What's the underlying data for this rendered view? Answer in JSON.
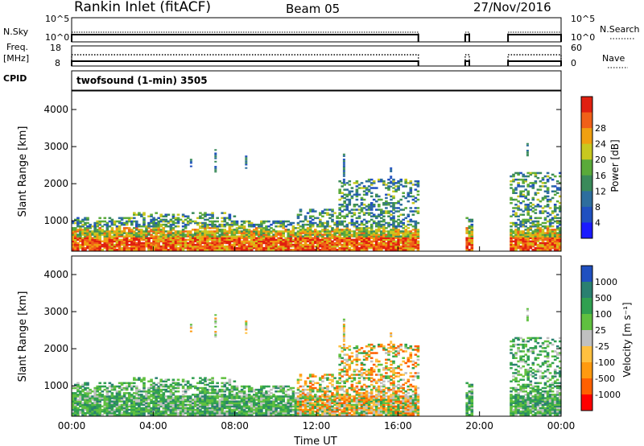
{
  "header": {
    "station": "Rankin Inlet (fitACF)",
    "beam": "Beam 05",
    "date": "27/Nov/2016"
  },
  "noise_panel": {
    "left_label": "N.Sky",
    "left_ticks": [
      "10^5",
      "10^0"
    ],
    "right_label": "N.Search",
    "right_ticks": [
      "10^5",
      "10^0"
    ]
  },
  "freq_panel": {
    "left_label_1": "Freq.",
    "left_label_2": "[MHz]",
    "left_ticks": [
      "18",
      "8"
    ],
    "right_label": "Nave",
    "right_ticks": [
      "60",
      "0"
    ]
  },
  "cpid": {
    "label": "CPID",
    "value": "twofsound (1-min) 3505"
  },
  "colors": {
    "power_scale": [
      "#1a1aff",
      "#2050c0",
      "#2e6e9e",
      "#3a8a5a",
      "#5aaa3a",
      "#c8c820",
      "#f0a010",
      "#f06018",
      "#e02010"
    ],
    "velocity_scale": [
      "#ff0000",
      "#ff6000",
      "#ff9a10",
      "#ffc040",
      "#c0c0c0",
      "#60c040",
      "#30a050",
      "#2a8070",
      "#2050c0"
    ]
  },
  "power_colorbar": {
    "label": "Power [dB]",
    "ticks": [
      "4",
      "8",
      "12",
      "16",
      "20",
      "24",
      "28"
    ]
  },
  "velocity_colorbar": {
    "label": "Velocity [m s⁻¹]",
    "ticks": [
      "1000",
      "500",
      "100",
      "25",
      "-25",
      "-100",
      "-500",
      "-1000"
    ]
  },
  "chart_data": {
    "type": "heatmap",
    "xlabel": "Time UT",
    "x_ticks": [
      "00:00",
      "04:00",
      "08:00",
      "12:00",
      "16:00",
      "20:00",
      "00:00"
    ],
    "xlim_hours": [
      0,
      24
    ],
    "ylabel": "Slant Range [km]",
    "y_ticks": [
      1000,
      2000,
      3000,
      4000
    ],
    "ylim": [
      180,
      4500
    ],
    "data_gap_hours": [
      [
        17.0,
        19.2
      ],
      [
        19.6,
        21.4
      ]
    ]
  }
}
